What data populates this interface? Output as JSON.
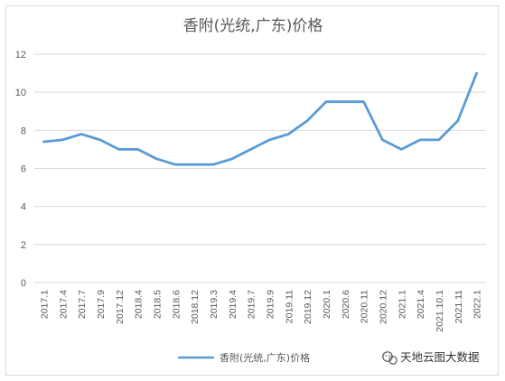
{
  "chart_data": {
    "type": "line",
    "title": "香附(光统,广东)价格",
    "xlabel": "",
    "ylabel": "",
    "ylim": [
      0,
      12
    ],
    "yticks": [
      0,
      2,
      4,
      6,
      8,
      10,
      12
    ],
    "grid": true,
    "legend_position": "bottom",
    "x": [
      "2017.1",
      "2017.4",
      "2017.7",
      "2017.9",
      "2017.12",
      "2018.4",
      "2018.5",
      "2018.6",
      "2018.12",
      "2019.3",
      "2019.4",
      "2019.7",
      "2019.9",
      "2019.11",
      "2019.12",
      "2020.1",
      "2020.6",
      "2020.11",
      "2020.12",
      "2021.1",
      "2021.4",
      "2021.10.1",
      "2021.11",
      "2022.1"
    ],
    "series": [
      {
        "name": "香附(光统,广东)价格",
        "color": "#5b9bd5",
        "values": [
          7.4,
          7.5,
          7.8,
          7.5,
          7.0,
          7.0,
          6.5,
          6.2,
          6.2,
          6.2,
          6.5,
          7.0,
          7.5,
          7.8,
          8.5,
          9.5,
          9.5,
          9.5,
          7.5,
          7.0,
          7.5,
          7.5,
          8.5,
          11.0
        ]
      }
    ]
  },
  "watermark": {
    "text": "天地云图大数据",
    "icon": "wechat-icon"
  }
}
